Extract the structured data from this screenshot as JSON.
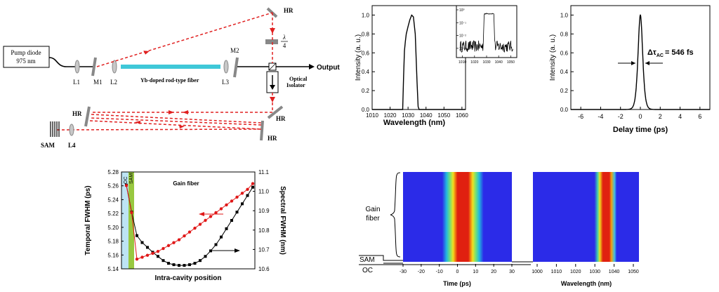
{
  "setup": {
    "pump_line1": "Pump diode",
    "pump_line2": "975 nm",
    "lens_l1": "L1",
    "mirror_m1": "M1",
    "lens_l2": "L2",
    "lens_l3": "L3",
    "mirror_m2": "M2",
    "lens_l4": "L4",
    "fiber_label": "Yb-doped rod-type fiber",
    "hr": "HR",
    "waveplate_num": "λ",
    "waveplate_den": "4",
    "output": "Output",
    "isolator_line1": "Optical",
    "isolator_line2": "Isolator",
    "sam": "SAM",
    "colors": {
      "beam": "#e02020",
      "fiber": "#3fc8d8",
      "optic": "#7a7a7a"
    }
  },
  "evolution_map": {
    "region_gain_line1": "Gain",
    "region_gain_line2": "fiber",
    "region_sam": "SAM",
    "region_oc": "OC",
    "time_ticks": [
      "-30",
      "-20",
      "-10",
      "0",
      "10",
      "20",
      "30"
    ],
    "time_label": "Time (ps)",
    "wl_ticks": [
      "1000",
      "1010",
      "1020",
      "1030",
      "1040",
      "1050"
    ],
    "wl_label": "Wavelength (nm)"
  },
  "chart_data": [
    {
      "type": "line",
      "title": "",
      "xlabel": "Wavelength (nm)",
      "ylabel": "Intensity (a. u.)",
      "xlim": [
        1010,
        1062
      ],
      "ylim": [
        0,
        1.1
      ],
      "xticks": [
        "1010",
        "1020",
        "1030",
        "1040",
        "1050",
        "1060"
      ],
      "yticks": [
        "0.0",
        "0.2",
        "0.4",
        "0.6",
        "0.8",
        "1.0"
      ],
      "x": [
        1010,
        1027,
        1027.5,
        1028,
        1028.5,
        1029,
        1030,
        1031,
        1032,
        1033,
        1034,
        1035,
        1035.6,
        1036.2,
        1062
      ],
      "values": [
        0,
        0,
        0.35,
        0.62,
        0.72,
        0.8,
        0.88,
        0.95,
        1.0,
        0.98,
        0.8,
        0.3,
        0.03,
        0,
        0
      ],
      "inset": {
        "type": "line",
        "scale": "log",
        "xticks": [
          "1010",
          "1020",
          "1030",
          "1040",
          "1050"
        ],
        "yticks": [
          "10⁰",
          "10⁻¹",
          "10⁻²",
          "10⁻³"
        ],
        "x": [
          1008,
          1027,
          1028,
          1036,
          1037,
          1052
        ],
        "log_values": [
          -3.2,
          -3.2,
          -0.3,
          -0.3,
          -3.2,
          -3.2
        ]
      }
    },
    {
      "type": "line",
      "title": "",
      "xlabel": "Delay time (ps)",
      "ylabel": "Intensity (a. u.)",
      "xlim": [
        -7,
        7
      ],
      "ylim": [
        0,
        1.1
      ],
      "xticks": [
        "-6",
        "-4",
        "-2",
        "0",
        "2",
        "4",
        "6"
      ],
      "yticks": [
        "0.0",
        "0.2",
        "0.4",
        "0.6",
        "0.8",
        "1.0"
      ],
      "annotation_prefix": "Δτ",
      "annotation_sub": "AC",
      "annotation_value": "= 546 fs",
      "fwhm_ps": 0.546,
      "peak": 1.0
    },
    {
      "type": "line",
      "title": "Gain fiber",
      "xlabel": "Intra-cavity position",
      "ylabel": "Temporal FWHM (ps)",
      "y2label": "Spectral FWHM (nm)",
      "band_labels": [
        "OC",
        "SAM"
      ],
      "ylim": [
        5.14,
        5.28
      ],
      "y2lim": [
        10.6,
        11.1
      ],
      "yticks": [
        "5.14",
        "5.16",
        "5.18",
        "5.20",
        "5.22",
        "5.24",
        "5.26",
        "5.28"
      ],
      "y2ticks": [
        "10.6",
        "10.7",
        "10.8",
        "10.9",
        "11.0",
        "11.1"
      ],
      "x": [
        0,
        1,
        2,
        3,
        4,
        5,
        6,
        7,
        8,
        9,
        10,
        11,
        12,
        13,
        14,
        15,
        16,
        17,
        18,
        19,
        20,
        21,
        22,
        23,
        24
      ],
      "series": [
        {
          "name": "Temporal FWHM",
          "axis": "left",
          "color": "#000000",
          "values": [
            5.261,
            5.222,
            5.188,
            5.178,
            5.171,
            5.164,
            5.158,
            5.152,
            5.148,
            5.146,
            5.145,
            5.145,
            5.146,
            5.148,
            5.152,
            5.158,
            5.166,
            5.175,
            5.186,
            5.198,
            5.21,
            5.222,
            5.234,
            5.246,
            5.258
          ]
        },
        {
          "name": "Spectral FWHM",
          "axis": "right",
          "color": "#e01818",
          "values": [
            11.03,
            10.89,
            10.65,
            10.66,
            10.67,
            10.68,
            10.69,
            10.705,
            10.72,
            10.735,
            10.75,
            10.77,
            10.79,
            10.81,
            10.83,
            10.85,
            10.87,
            10.89,
            10.91,
            10.93,
            10.95,
            10.97,
            10.99,
            11.01,
            11.04
          ]
        }
      ]
    }
  ]
}
